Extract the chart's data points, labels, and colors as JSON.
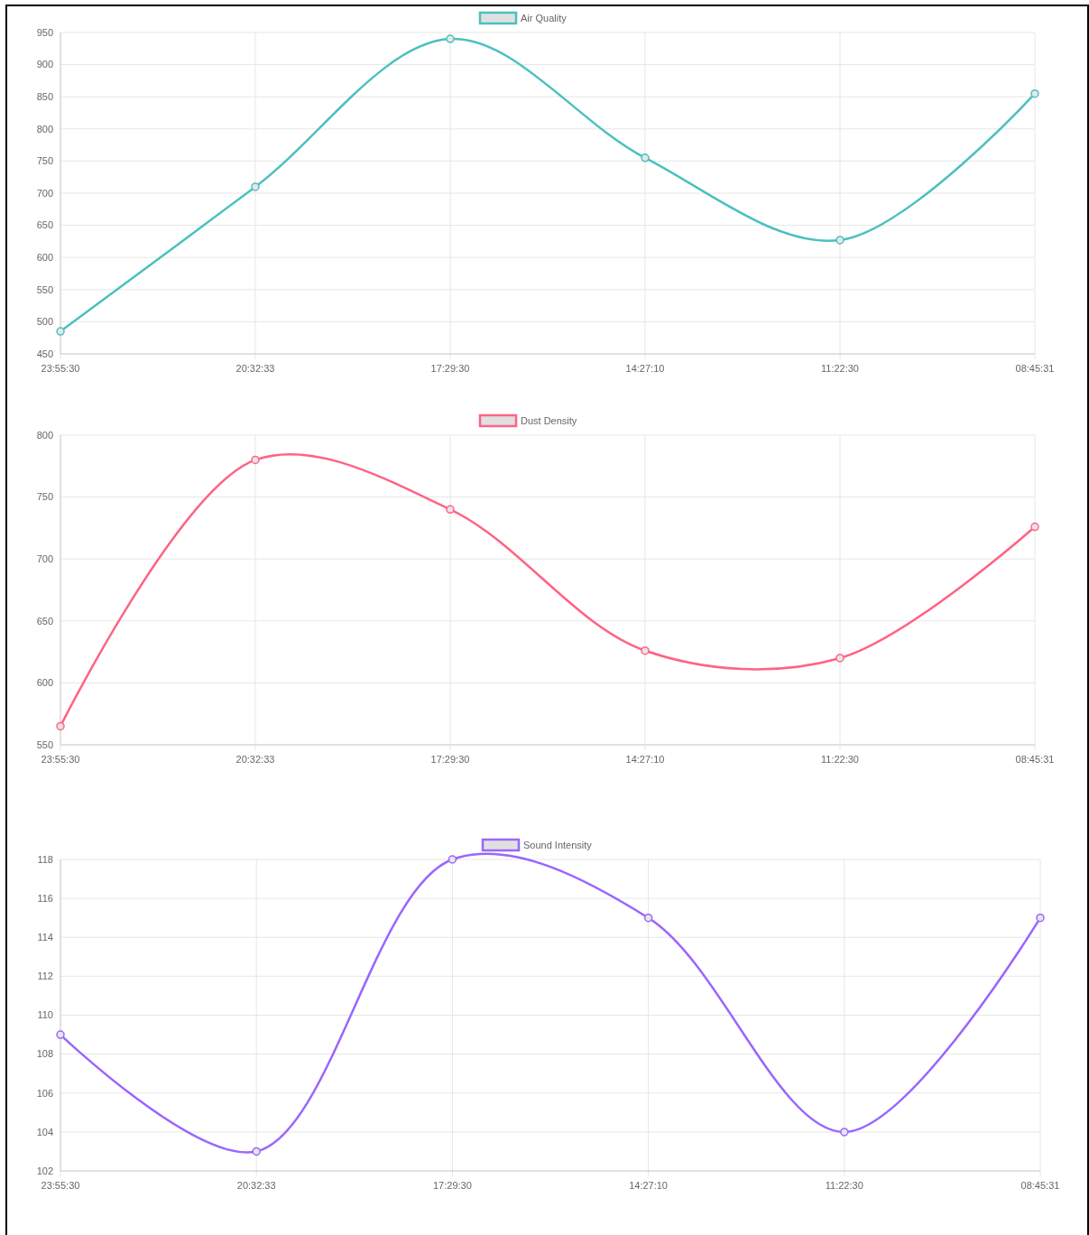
{
  "chart_data": [
    {
      "type": "line",
      "categories": [
        "23:55:30",
        "20:32:33",
        "17:29:30",
        "14:27:10",
        "11:22:30",
        "08:45:31"
      ],
      "series": [
        {
          "name": "Air Quality",
          "color": "#4bc0c0",
          "values": [
            485,
            710,
            940,
            755,
            627,
            855
          ]
        }
      ],
      "ylim": [
        450,
        950
      ],
      "yticks": [
        450,
        500,
        550,
        600,
        650,
        700,
        750,
        800,
        850,
        900,
        950
      ],
      "grid": true,
      "legend": "top",
      "marker": "circle"
    },
    {
      "type": "line",
      "categories": [
        "23:55:30",
        "20:32:33",
        "17:29:30",
        "14:27:10",
        "11:22:30",
        "08:45:31"
      ],
      "series": [
        {
          "name": "Dust Density",
          "color": "#ff6384",
          "values": [
            565,
            780,
            740,
            626,
            620,
            726
          ]
        }
      ],
      "ylim": [
        550,
        800
      ],
      "yticks": [
        550,
        600,
        650,
        700,
        750,
        800
      ],
      "grid": true,
      "legend": "top",
      "marker": "circle"
    },
    {
      "type": "line",
      "categories": [
        "23:55:30",
        "20:32:33",
        "17:29:30",
        "14:27:10",
        "11:22:30",
        "08:45:31"
      ],
      "series": [
        {
          "name": "Sound Intensity",
          "color": "#9966ff",
          "values": [
            109,
            103,
            118,
            115,
            104,
            115
          ]
        }
      ],
      "ylim": [
        102,
        118
      ],
      "yticks": [
        102,
        104,
        106,
        108,
        110,
        112,
        114,
        116,
        118
      ],
      "grid": true,
      "legend": "top",
      "marker": "circle"
    }
  ]
}
